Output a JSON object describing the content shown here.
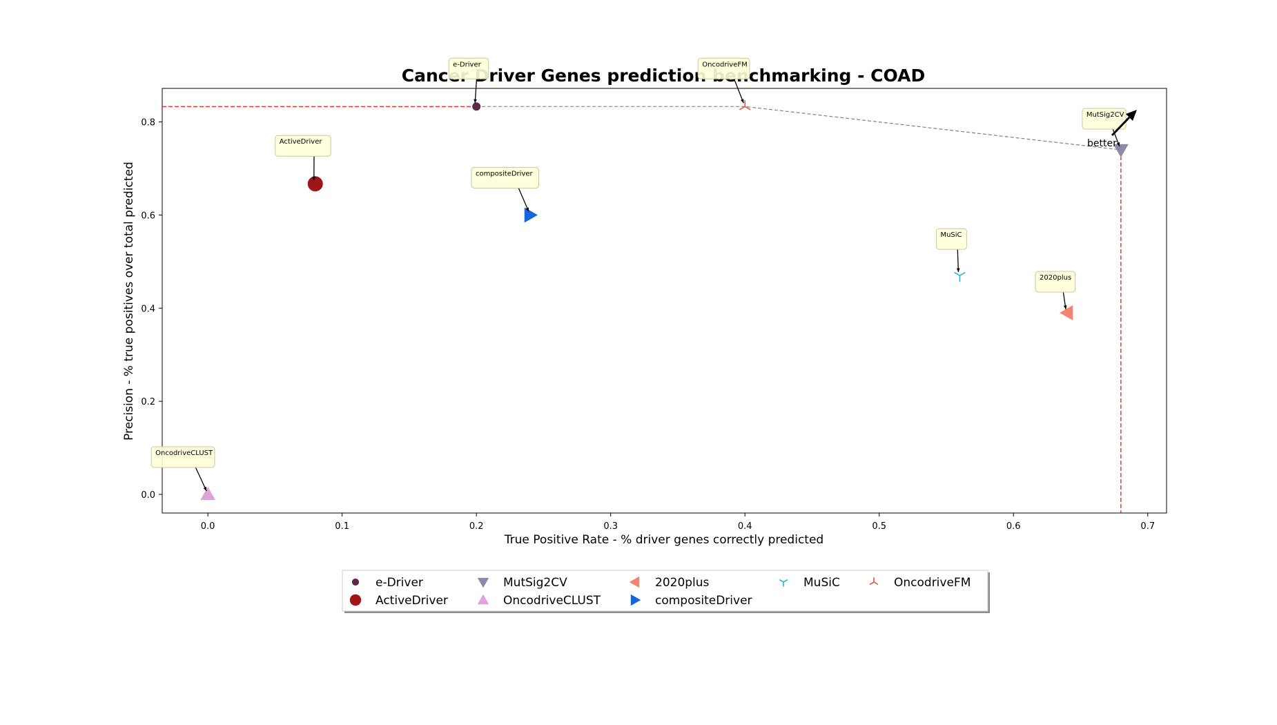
{
  "chart_data": {
    "type": "scatter",
    "title": "Cancer Driver Genes prediction benchmarking - COAD",
    "xlabel": "True Positive Rate - % driver genes correctly predicted",
    "ylabel": "Precision - % true positives over total predicted",
    "xlim": [
      -0.034,
      0.714
    ],
    "ylim": [
      -0.04,
      0.872
    ],
    "xticks": [
      "0.0",
      "0.1",
      "0.2",
      "0.3",
      "0.4",
      "0.5",
      "0.6",
      "0.7"
    ],
    "yticks": [
      "0.0",
      "0.2",
      "0.4",
      "0.6",
      "0.8"
    ],
    "grid": false,
    "series": [
      {
        "name": "e-Driver",
        "x": 0.2,
        "y": 0.833,
        "marker": "circle-small",
        "color": "#5c2b46"
      },
      {
        "name": "ActiveDriver",
        "x": 0.08,
        "y": 0.667,
        "marker": "circle-large",
        "color": "#a01515"
      },
      {
        "name": "MutSig2CV",
        "x": 0.68,
        "y": 0.74,
        "marker": "triangle-down",
        "color": "#8c8aa8"
      },
      {
        "name": "OncodriveCLUST",
        "x": 0.0,
        "y": 0.0,
        "marker": "triangle-up",
        "color": "#e0a3d6"
      },
      {
        "name": "2020plus",
        "x": 0.64,
        "y": 0.39,
        "marker": "triangle-left",
        "color": "#f58370"
      },
      {
        "name": "compositeDriver",
        "x": 0.24,
        "y": 0.6,
        "marker": "triangle-right",
        "color": "#1565e0"
      },
      {
        "name": "MuSiC",
        "x": 0.56,
        "y": 0.47,
        "marker": "tri-down",
        "color": "#2ab7c9"
      },
      {
        "name": "OncodriveFM",
        "x": 0.4,
        "y": 0.833,
        "marker": "tri-up",
        "color": "#e05a33"
      }
    ],
    "annotations": [
      {
        "text": "e-Driver",
        "target": "e-Driver"
      },
      {
        "text": "ActiveDriver",
        "target": "ActiveDriver"
      },
      {
        "text": "MutSig2CV",
        "target": "MutSig2CV"
      },
      {
        "text": "OncodriveCLUST",
        "target": "OncodriveCLUST"
      },
      {
        "text": "2020plus",
        "target": "2020plus"
      },
      {
        "text": "compositeDriver",
        "target": "compositeDriver"
      },
      {
        "text": "MuSiC",
        "target": "MuSiC"
      },
      {
        "text": "OncodriveFM",
        "target": "OncodriveFM"
      },
      {
        "text": "better",
        "target": "arrow"
      }
    ],
    "pareto_front": [
      [
        0.2,
        0.833
      ],
      [
        0.4,
        0.833
      ],
      [
        0.68,
        0.74
      ]
    ],
    "reference_lines": {
      "horizontal_y": 0.833,
      "vertical_x": 0.68,
      "color": "#ff0000"
    },
    "legend": {
      "position": "bottom-center",
      "columns": [
        [
          "e-Driver",
          "ActiveDriver"
        ],
        [
          "MutSig2CV",
          "OncodriveCLUST"
        ],
        [
          "2020plus",
          "compositeDriver"
        ],
        [
          "MuSiC"
        ],
        [
          "OncodriveFM"
        ]
      ]
    }
  }
}
